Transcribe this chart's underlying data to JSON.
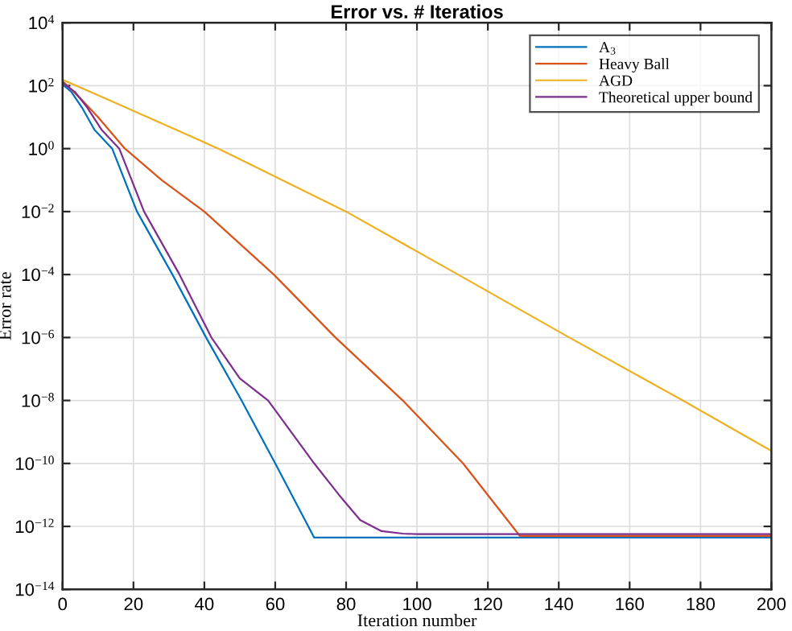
{
  "chart_data": {
    "type": "line",
    "title": "Error vs. # Iteratios",
    "xlabel": "Iteration number",
    "ylabel": "Error rate",
    "log": "y",
    "grid": true,
    "legend": "top right",
    "line_style": "solid",
    "marker": "none",
    "xlim": [
      0,
      200
    ],
    "xticks": [
      0,
      20,
      40,
      60,
      80,
      100,
      120,
      140,
      160,
      180,
      200
    ],
    "ylim": [
      1e-14,
      10000
    ],
    "yticks": [
      {
        "value": 1e-14,
        "label": "10$^{−14}$"
      },
      {
        "value": 1e-12,
        "label": "10$^{−12}$"
      },
      {
        "value": 1e-10,
        "label": "10$^{−10}$"
      },
      {
        "value": 1e-08,
        "label": "10$^{−8}$"
      },
      {
        "value": 1e-06,
        "label": "10$^{−6}$"
      },
      {
        "value": 0.0001,
        "label": "10$^{−4}$"
      },
      {
        "value": 0.01,
        "label": "10$^{−2}$"
      },
      {
        "value": 1,
        "label": "10$^{0}$"
      },
      {
        "value": 100,
        "label": "10$^{2}$"
      },
      {
        "value": 10000,
        "label": "10$^{4}$"
      }
    ],
    "series": [
      {
        "name": "A$_{3}$",
        "color": "#0072bd",
        "x": [
          0,
          2.5,
          5.5,
          9,
          14,
          21,
          31,
          40.5,
          50.5,
          60,
          71,
          200
        ],
        "values": [
          110,
          63.1,
          20,
          3.98,
          1,
          0.01,
          0.0001,
          1e-06,
          1e-08,
          1e-10,
          4.4e-13,
          4.4e-13
        ]
      },
      {
        "name": "Heavy Ball",
        "color": "#d95319",
        "x": [
          0,
          5,
          10,
          17.6,
          28,
          40,
          59.6,
          77,
          96,
          113,
          129,
          200
        ],
        "values": [
          140,
          39.8,
          10,
          1,
          0.1,
          0.01,
          0.0001,
          1e-06,
          1e-08,
          1e-10,
          5e-13,
          5e-13
        ]
      },
      {
        "name": "AGD",
        "color": "#edb120",
        "x": [
          0,
          10,
          20,
          30,
          44,
          80,
          111.6,
          143,
          175,
          200
        ],
        "values": [
          155,
          50.1,
          15.8,
          5.01,
          1,
          0.01,
          0.0001,
          1e-06,
          1e-08,
          2.51e-10
        ]
      },
      {
        "name": "Theoretical upper bound",
        "color": "#7e2f8e",
        "x": [
          0,
          3.5,
          7,
          11,
          16,
          23,
          33,
          42,
          50,
          58,
          71,
          78,
          84,
          90,
          96,
          100,
          200
        ],
        "values": [
          125,
          63.1,
          20,
          3.98,
          1,
          0.01,
          0.0001,
          1e-06,
          5.01e-08,
          1e-08,
          1e-10,
          1e-11,
          1.58e-12,
          7.08e-13,
          5.9e-13,
          5.7e-13,
          5.7e-13
        ]
      }
    ]
  }
}
